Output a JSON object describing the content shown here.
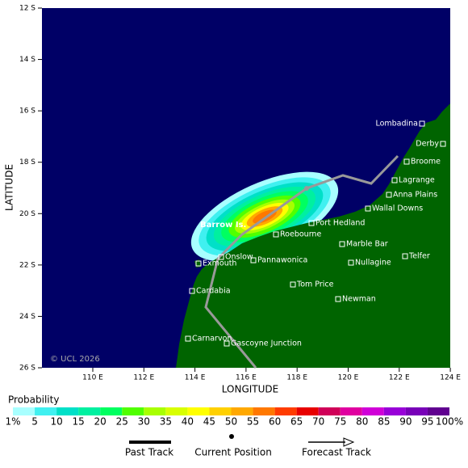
{
  "axes": {
    "y_label": "LATITUDE",
    "x_label": "LONGITUDE",
    "lat_ticks": [
      "12 S",
      "14 S",
      "16 S",
      "18 S",
      "20 S",
      "22 S",
      "24 S",
      "26 S"
    ],
    "lon_ticks": [
      "110 E",
      "112 E",
      "114 E",
      "116 E",
      "118 E",
      "120 E",
      "122 E",
      "124 E"
    ]
  },
  "places": [
    "Lombadina",
    "Derby",
    "Broome",
    "Lagrange",
    "Anna Plains",
    "Wallal Downs",
    "Port Hedland",
    "Roebourne",
    "Marble Bar",
    "Onslow",
    "Pannawonica",
    "Exmouth",
    "Nullagine",
    "Telfer",
    "Tom Price",
    "Newman",
    "Cardabia",
    "Carnarvon",
    "Gascoyne Junction"
  ],
  "island": "Barrow Is.",
  "copyright": "© UCL 2026",
  "legend": {
    "title": "Probability",
    "colors": [
      "#a8ffff",
      "#40f0f0",
      "#00e0c8",
      "#00f0a0",
      "#00ff60",
      "#50ff00",
      "#a8ff00",
      "#d8ff00",
      "#ffff00",
      "#ffd000",
      "#ffa800",
      "#ff7800",
      "#ff3c00",
      "#e80000",
      "#d00058",
      "#e000a0",
      "#d000d8",
      "#9800d8",
      "#7800b8",
      "#600090"
    ],
    "labels": [
      "1%",
      "5",
      "10",
      "15",
      "20",
      "25",
      "30",
      "35",
      "40",
      "45",
      "50",
      "55",
      "60",
      "65",
      "70",
      "75",
      "80",
      "85",
      "90",
      "95",
      "100%"
    ],
    "items": [
      "Past Track",
      "Current Position",
      "Forecast Track"
    ]
  }
}
